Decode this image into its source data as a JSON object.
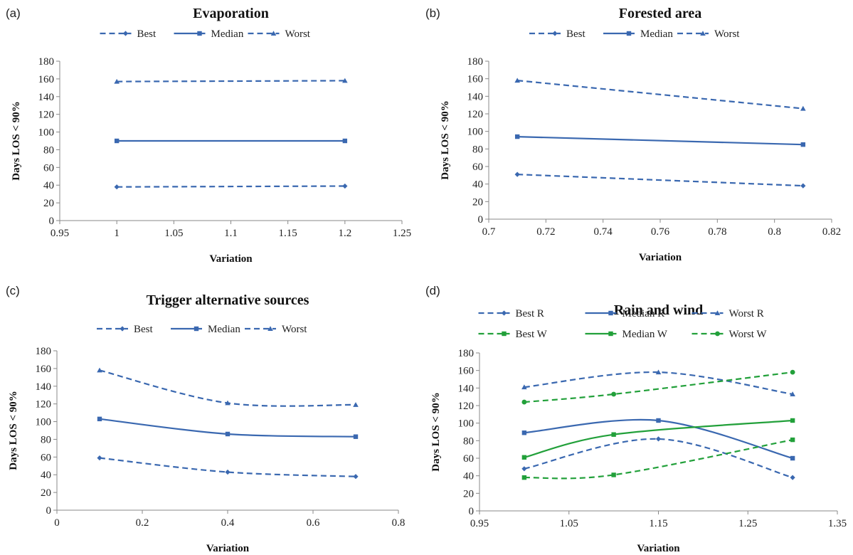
{
  "chart_data": [
    {
      "type": "line",
      "panel": "(a)",
      "title": "Evaporation",
      "xlabel": "Variation",
      "ylabel": "Days LOS < 90%",
      "xlim": [
        0.95,
        1.25
      ],
      "ylim": [
        0,
        180
      ],
      "xticks": [
        "0.95",
        "1",
        "1.05",
        "1.1",
        "1.15",
        "1.2",
        "1.25"
      ],
      "yticks": [
        "0",
        "20",
        "40",
        "60",
        "80",
        "100",
        "120",
        "140",
        "160",
        "180"
      ],
      "grid": false,
      "legend": "top",
      "smooth": false,
      "series": [
        {
          "name": "Best",
          "color": "#3a68b0",
          "dash": true,
          "marker": "diamond",
          "x": [
            1,
            1.2
          ],
          "y": [
            38,
            39
          ]
        },
        {
          "name": "Median",
          "color": "#3a68b0",
          "dash": false,
          "marker": "square",
          "x": [
            1,
            1.2
          ],
          "y": [
            90,
            90
          ]
        },
        {
          "name": "Worst",
          "color": "#3a68b0",
          "dash": true,
          "marker": "triangle",
          "x": [
            1,
            1.2
          ],
          "y": [
            157,
            158
          ]
        }
      ]
    },
    {
      "type": "line",
      "panel": "(b)",
      "title": "Forested area",
      "xlabel": "Variation",
      "ylabel": "Days LOS < 90%",
      "xlim": [
        0.7,
        0.82
      ],
      "ylim": [
        0,
        180
      ],
      "xticks": [
        "0.7",
        "0.72",
        "0.74",
        "0.76",
        "0.78",
        "0.8",
        "0.82"
      ],
      "yticks": [
        "0",
        "20",
        "40",
        "60",
        "80",
        "100",
        "120",
        "140",
        "160",
        "180"
      ],
      "grid": false,
      "legend": "top",
      "smooth": false,
      "series": [
        {
          "name": "Best",
          "color": "#3a68b0",
          "dash": true,
          "marker": "diamond",
          "x": [
            0.71,
            0.81
          ],
          "y": [
            51,
            38
          ]
        },
        {
          "name": "Median",
          "color": "#3a68b0",
          "dash": false,
          "marker": "square",
          "x": [
            0.71,
            0.81
          ],
          "y": [
            94,
            85
          ]
        },
        {
          "name": "Worst",
          "color": "#3a68b0",
          "dash": true,
          "marker": "triangle",
          "x": [
            0.71,
            0.81
          ],
          "y": [
            158,
            126
          ]
        }
      ]
    },
    {
      "type": "line",
      "panel": "(c)",
      "title": "Trigger alternative sources",
      "xlabel": "Variation",
      "ylabel": "Days LOS < 90%",
      "xlim": [
        0,
        0.8
      ],
      "ylim": [
        0,
        180
      ],
      "xticks": [
        "0",
        "0.2",
        "0.4",
        "0.6",
        "0.8"
      ],
      "yticks": [
        "0",
        "20",
        "40",
        "60",
        "80",
        "100",
        "120",
        "140",
        "160",
        "180"
      ],
      "grid": false,
      "legend": "top",
      "smooth": true,
      "series": [
        {
          "name": "Best",
          "color": "#3a68b0",
          "dash": true,
          "marker": "diamond",
          "x": [
            0.1,
            0.4,
            0.7
          ],
          "y": [
            59,
            43,
            38
          ]
        },
        {
          "name": "Median",
          "color": "#3a68b0",
          "dash": false,
          "marker": "square",
          "x": [
            0.1,
            0.4,
            0.7
          ],
          "y": [
            103,
            86,
            83
          ]
        },
        {
          "name": "Worst",
          "color": "#3a68b0",
          "dash": true,
          "marker": "triangle",
          "x": [
            0.1,
            0.4,
            0.7
          ],
          "y": [
            158,
            121,
            119
          ]
        }
      ]
    },
    {
      "type": "line",
      "panel": "(d)",
      "title": "Rain and wind",
      "xlabel": "Variation",
      "ylabel": "Days LOS < 90%",
      "xlim": [
        0.95,
        1.35
      ],
      "ylim": [
        0,
        180
      ],
      "xticks": [
        "0.95",
        "1.05",
        "1.15",
        "1.25",
        "1.35"
      ],
      "yticks": [
        "0",
        "20",
        "40",
        "60",
        "80",
        "100",
        "120",
        "140",
        "160",
        "180"
      ],
      "grid": false,
      "legend": "top",
      "smooth": true,
      "series": [
        {
          "name": "Best R",
          "color": "#3a68b0",
          "dash": true,
          "marker": "diamond",
          "x": [
            1,
            1.15,
            1.3
          ],
          "y": [
            48,
            82,
            38
          ]
        },
        {
          "name": "Median R",
          "color": "#3a68b0",
          "dash": false,
          "marker": "square",
          "x": [
            1,
            1.15,
            1.3
          ],
          "y": [
            89,
            103,
            60
          ]
        },
        {
          "name": "Worst R",
          "color": "#3a68b0",
          "dash": true,
          "marker": "triangle",
          "x": [
            1,
            1.15,
            1.3
          ],
          "y": [
            141,
            158,
            133
          ]
        },
        {
          "name": "Best W",
          "color": "#22a03a",
          "dash": true,
          "marker": "square",
          "x": [
            1,
            1.1,
            1.3
          ],
          "y": [
            38,
            41,
            81
          ]
        },
        {
          "name": "Median W",
          "color": "#22a03a",
          "dash": false,
          "marker": "square",
          "x": [
            1,
            1.1,
            1.3
          ],
          "y": [
            61,
            87,
            103
          ]
        },
        {
          "name": "Worst W",
          "color": "#22a03a",
          "dash": true,
          "marker": "circle",
          "x": [
            1,
            1.1,
            1.3
          ],
          "y": [
            124,
            133,
            158
          ]
        }
      ]
    }
  ]
}
